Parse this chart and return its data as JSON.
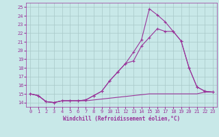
{
  "xlabel": "Windchill (Refroidissement éolien,°C)",
  "bg_color": "#c8e8e8",
  "grid_color": "#a8c8c8",
  "line_color": "#993399",
  "xlim_min": -0.5,
  "xlim_max": 23.5,
  "ylim_min": 13.5,
  "ylim_max": 25.5,
  "yticks": [
    14,
    15,
    16,
    17,
    18,
    19,
    20,
    21,
    22,
    23,
    24,
    25
  ],
  "xticks": [
    0,
    1,
    2,
    3,
    4,
    5,
    6,
    7,
    8,
    9,
    10,
    11,
    12,
    13,
    14,
    15,
    16,
    17,
    18,
    19,
    20,
    21,
    22,
    23
  ],
  "line1_x": [
    0,
    1,
    2,
    3,
    4,
    5,
    6,
    7,
    8,
    9,
    10,
    11,
    12,
    13,
    14,
    15,
    16,
    17,
    18,
    19,
    20,
    21,
    22,
    23
  ],
  "line1_y": [
    15.0,
    14.8,
    14.1,
    14.0,
    14.2,
    14.2,
    14.2,
    14.3,
    14.8,
    15.3,
    16.5,
    17.5,
    18.5,
    19.8,
    21.2,
    24.8,
    24.1,
    23.3,
    22.2,
    21.1,
    18.0,
    15.8,
    15.3,
    15.2
  ],
  "line2_x": [
    0,
    1,
    2,
    3,
    4,
    5,
    6,
    7,
    8,
    9,
    10,
    11,
    12,
    13,
    14,
    15,
    16,
    17,
    18,
    19,
    20,
    21,
    22,
    23
  ],
  "line2_y": [
    15.0,
    14.8,
    14.1,
    14.0,
    14.2,
    14.2,
    14.2,
    14.3,
    14.8,
    15.3,
    16.5,
    17.5,
    18.5,
    18.8,
    20.5,
    21.5,
    22.5,
    22.2,
    22.2,
    21.1,
    18.0,
    15.8,
    15.3,
    15.2
  ],
  "line3_x": [
    0,
    1,
    2,
    3,
    4,
    5,
    6,
    7,
    8,
    9,
    10,
    11,
    12,
    13,
    14,
    15,
    16,
    17,
    18,
    19,
    20,
    21,
    22,
    23
  ],
  "line3_y": [
    15.0,
    14.8,
    14.1,
    14.0,
    14.2,
    14.2,
    14.2,
    14.2,
    14.3,
    14.4,
    14.5,
    14.6,
    14.7,
    14.8,
    14.9,
    15.0,
    15.0,
    15.0,
    15.0,
    15.0,
    15.0,
    15.0,
    15.2,
    15.2
  ]
}
